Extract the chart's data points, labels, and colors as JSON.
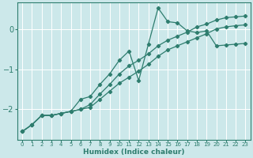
{
  "xlabel": "Humidex (Indice chaleur)",
  "ylabel": "",
  "bg_color": "#cce8ea",
  "grid_color": "#ffffff",
  "line_color": "#2e7d6e",
  "xlim": [
    -0.5,
    23.5
  ],
  "ylim": [
    -2.75,
    0.65
  ],
  "yticks": [
    0,
    -1,
    -2
  ],
  "xticks": [
    0,
    1,
    2,
    3,
    4,
    5,
    6,
    7,
    8,
    9,
    10,
    11,
    12,
    13,
    14,
    15,
    16,
    17,
    18,
    19,
    20,
    21,
    22,
    23
  ],
  "line1_x": [
    0,
    1,
    2,
    3,
    4,
    5,
    6,
    7,
    8,
    9,
    10,
    11,
    12,
    13,
    14,
    15,
    16,
    17,
    18,
    19,
    20,
    21,
    22,
    23
  ],
  "line1_y": [
    -2.55,
    -2.38,
    -2.15,
    -2.15,
    -2.1,
    -2.05,
    -2.0,
    -1.95,
    -1.75,
    -1.55,
    -1.35,
    -1.2,
    -1.05,
    -0.88,
    -0.68,
    -0.52,
    -0.42,
    -0.32,
    -0.22,
    -0.12,
    0.0,
    0.05,
    0.08,
    0.1
  ],
  "line2_x": [
    0,
    1,
    2,
    3,
    4,
    5,
    6,
    7,
    8,
    9,
    10,
    11,
    12,
    13,
    14,
    15,
    16,
    17,
    18,
    19,
    20,
    21,
    22,
    23
  ],
  "line2_y": [
    -2.55,
    -2.38,
    -2.15,
    -2.15,
    -2.1,
    -2.05,
    -1.75,
    -1.68,
    -1.38,
    -1.12,
    -0.78,
    -0.55,
    -1.28,
    -0.38,
    0.52,
    0.18,
    0.15,
    -0.05,
    -0.09,
    -0.05,
    -0.42,
    -0.4,
    -0.38,
    -0.36
  ],
  "line3_x": [
    0,
    1,
    2,
    3,
    4,
    5,
    6,
    7,
    8,
    9,
    10,
    11,
    12,
    13,
    14,
    15,
    16,
    17,
    18,
    19,
    20,
    21,
    22,
    23
  ],
  "line3_y": [
    -2.55,
    -2.38,
    -2.15,
    -2.15,
    -2.1,
    -2.05,
    -2.0,
    -1.88,
    -1.62,
    -1.38,
    -1.12,
    -0.92,
    -0.78,
    -0.62,
    -0.42,
    -0.28,
    -0.18,
    -0.08,
    0.05,
    0.12,
    0.22,
    0.28,
    0.3,
    0.32
  ]
}
